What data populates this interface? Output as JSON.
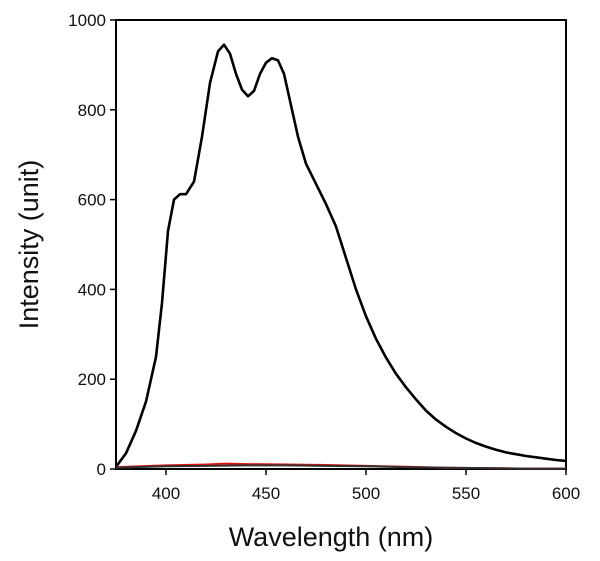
{
  "chart_data": {
    "type": "line",
    "xlabel": "Wavelength  (nm)",
    "ylabel": "Intensity (unit)",
    "xlim": [
      375,
      600
    ],
    "ylim": [
      0,
      1000
    ],
    "x_ticks": [
      400,
      450,
      500,
      550,
      600
    ],
    "y_ticks": [
      0,
      200,
      400,
      600,
      800,
      1000
    ],
    "x_tick_labels": [
      "400",
      "450",
      "500",
      "550",
      "600"
    ],
    "y_tick_labels": [
      "0",
      "200",
      "400",
      "600",
      "800",
      "1000"
    ],
    "grid": false,
    "legend": "none",
    "series": [
      {
        "color": "#000000",
        "x": [
          375,
          380,
          385,
          390,
          395,
          398,
          401,
          404,
          407,
          410,
          414,
          418,
          422,
          426,
          429,
          432,
          435,
          438,
          441,
          444,
          447,
          450,
          453,
          456,
          459,
          462,
          466,
          470,
          475,
          480,
          485,
          490,
          495,
          500,
          505,
          510,
          515,
          520,
          525,
          530,
          535,
          540,
          545,
          550,
          555,
          560,
          565,
          570,
          575,
          580,
          585,
          590,
          595,
          600
        ],
        "y": [
          5,
          35,
          85,
          150,
          250,
          370,
          530,
          600,
          612,
          612,
          640,
          740,
          860,
          930,
          945,
          925,
          880,
          845,
          830,
          842,
          880,
          905,
          915,
          910,
          880,
          820,
          740,
          680,
          635,
          590,
          540,
          470,
          400,
          340,
          290,
          248,
          212,
          182,
          155,
          130,
          110,
          94,
          80,
          68,
          58,
          50,
          43,
          37,
          33,
          29,
          26,
          23,
          20,
          18
        ]
      },
      {
        "color": "#e01010",
        "x": [
          375,
          400,
          420,
          430,
          440,
          460,
          480,
          500,
          520,
          540,
          560,
          580,
          600
        ],
        "y": [
          4,
          8,
          10,
          12,
          11,
          10,
          9,
          7,
          5,
          3,
          2,
          1,
          1
        ]
      },
      {
        "color": "#303030",
        "x": [
          375,
          400,
          420,
          440,
          460,
          480,
          500,
          520,
          540,
          560,
          580,
          600
        ],
        "y": [
          3,
          6,
          7,
          8,
          8,
          7,
          6,
          4,
          3,
          2,
          1,
          1
        ]
      }
    ]
  }
}
